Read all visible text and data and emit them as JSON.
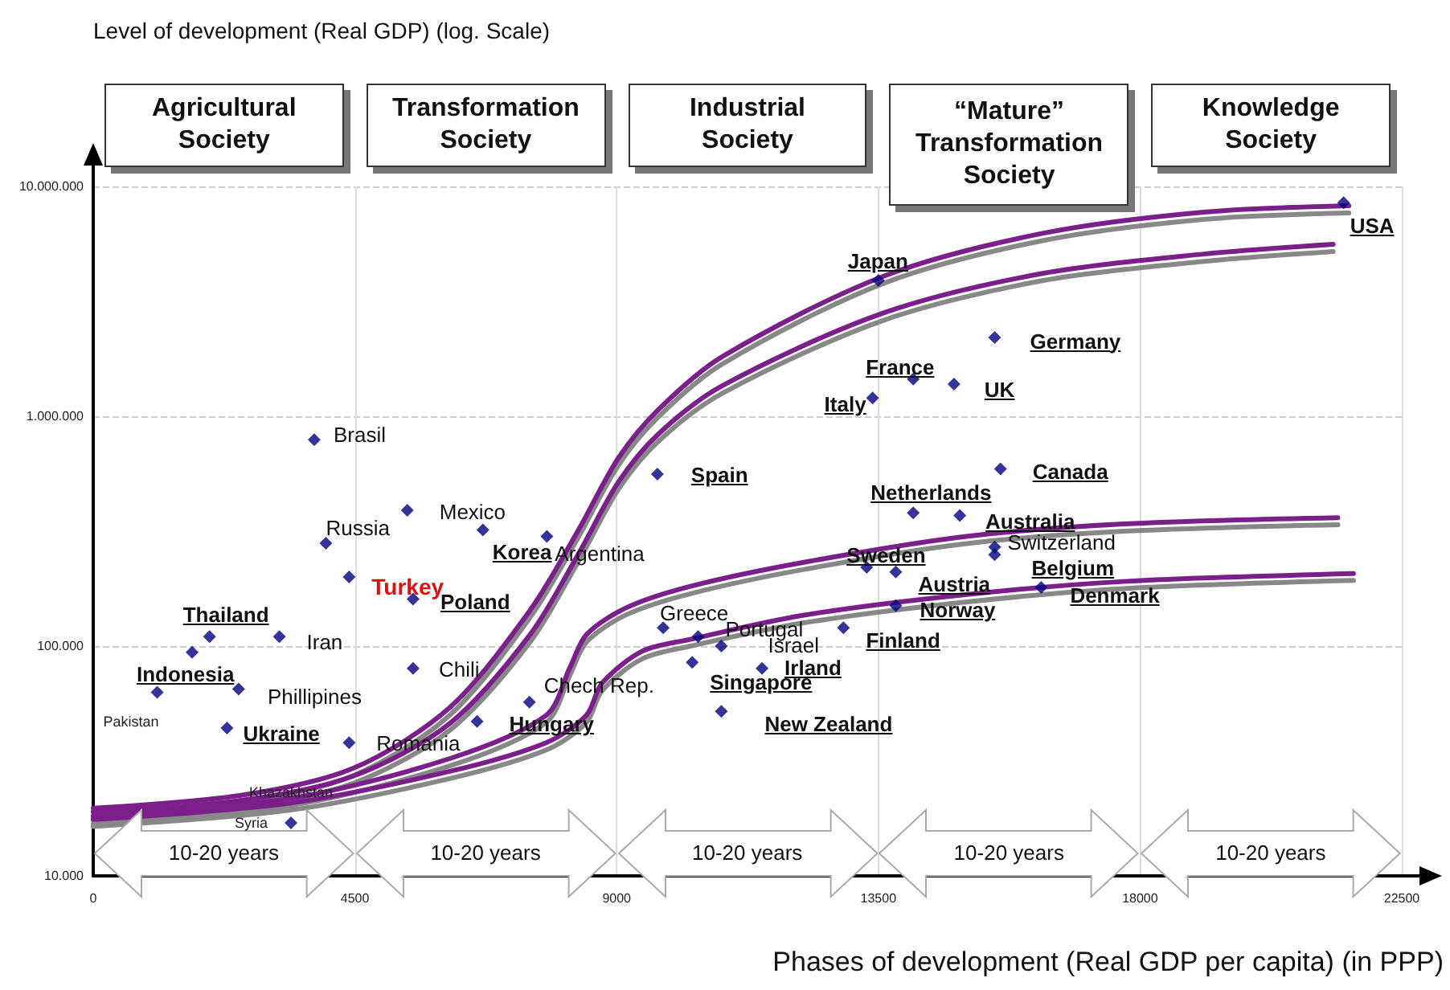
{
  "chart_data": {
    "type": "scatter",
    "title": "Level of development (Real GDP) (log. Scale)",
    "xlabel": "Phases of development (Real GDP per capita) (in PPP)",
    "xlim": [
      0,
      22500
    ],
    "xticks": [
      0,
      4500,
      9000,
      13500,
      18000,
      22500
    ],
    "ylim": [
      10000,
      10000000
    ],
    "yticks": [
      {
        "value": 10000,
        "label": "10.000"
      },
      {
        "value": 100000,
        "label": "100.000"
      },
      {
        "value": 1000000,
        "label": "1.000.000"
      },
      {
        "value": 10000000,
        "label": "10.000.000"
      }
    ],
    "log": "y",
    "grid": true,
    "series": [
      {
        "type": "line",
        "color": "#888888",
        "x": [
          0,
          2540,
          4470,
          6130,
          7510,
          8340,
          9030,
          9720,
          10820,
          13580,
          16340,
          19100,
          21590
        ],
        "values": [
          18300,
          20800,
          27300,
          50000,
          133000,
          297000,
          612000,
          995000,
          1690000,
          3780000,
          5820000,
          7190000,
          7660000
        ]
      },
      {
        "type": "line",
        "color": "#888888",
        "x": [
          0,
          2540,
          4470,
          6130,
          7510,
          8340,
          9030,
          9720,
          10820,
          13580,
          16340,
          19100,
          21320
        ],
        "values": [
          17700,
          19800,
          25300,
          43000,
          104000,
          233000,
          481000,
          779000,
          1260000,
          2610000,
          3900000,
          4720000,
          5210000
        ]
      },
      {
        "type": "line",
        "color": "#888888",
        "x": [
          0,
          3370,
          6130,
          7790,
          8200,
          8480,
          9170,
          10270,
          12200,
          14960,
          17720,
          21400
        ],
        "values": [
          16900,
          20200,
          30100,
          46500,
          75000,
          104000,
          137000,
          169000,
          215000,
          278000,
          316000,
          337000
        ]
      },
      {
        "type": "line",
        "color": "#888888",
        "x": [
          0,
          3370,
          6130,
          7790,
          8480,
          8750,
          9440,
          10270,
          12200,
          14960,
          17720,
          21670
        ],
        "values": [
          16400,
          19300,
          26500,
          35300,
          46500,
          64000,
          88000,
          100000,
          126000,
          155000,
          178000,
          193000
        ]
      },
      {
        "type": "line",
        "color": "#7b1f8a",
        "x": [
          0,
          2540,
          4470,
          6130,
          7510,
          8340,
          9030,
          9720,
          10820,
          13580,
          16340,
          19100,
          21590
        ],
        "values": [
          19700,
          22400,
          29400,
          54000,
          143000,
          319000,
          658000,
          1070000,
          1820000,
          4060000,
          6260000,
          7730000,
          8240000
        ]
      },
      {
        "type": "line",
        "color": "#7b1f8a",
        "x": [
          0,
          2540,
          4470,
          6130,
          7510,
          8340,
          9030,
          9720,
          10820,
          13580,
          16340,
          19100,
          21320
        ],
        "values": [
          19000,
          21300,
          27200,
          46000,
          112000,
          251000,
          517000,
          838000,
          1360000,
          2810000,
          4190000,
          5080000,
          5600000
        ]
      },
      {
        "type": "line",
        "color": "#7b1f8a",
        "x": [
          0,
          3370,
          6130,
          7790,
          8200,
          8480,
          9170,
          10270,
          12200,
          14960,
          17720,
          21400
        ],
        "values": [
          18200,
          21700,
          32400,
          50000,
          81000,
          112000,
          147000,
          182000,
          231000,
          299000,
          340000,
          362000
        ]
      },
      {
        "type": "line",
        "color": "#7b1f8a",
        "x": [
          0,
          3370,
          6130,
          7790,
          8480,
          8750,
          9440,
          10270,
          12200,
          14960,
          17720,
          21670
        ],
        "values": [
          17600,
          20700,
          28500,
          38000,
          50000,
          69000,
          95000,
          107000,
          136000,
          167000,
          191000,
          207000
        ]
      },
      {
        "marker": "diamond",
        "color": "#000080",
        "x": [
          21500,
          13500,
          15500,
          14100,
          14800,
          13400,
          15600,
          14100,
          14900,
          15500,
          15500,
          16300,
          13300,
          13800,
          13800,
          12900,
          9700,
          9800,
          10400,
          10800,
          11500,
          10300,
          10800,
          3800,
          5400,
          6700,
          7800,
          4000,
          4400,
          5500,
          2000,
          1700,
          1100,
          2500,
          3200,
          2300,
          4400,
          5500,
          6600,
          7500,
          3400
        ],
        "values": [
          8500000,
          3900000,
          2200000,
          1450000,
          1380000,
          1200000,
          590000,
          380000,
          370000,
          270000,
          250000,
          180000,
          220000,
          210000,
          150000,
          120000,
          560000,
          120000,
          110000,
          100000,
          80000,
          85000,
          52000,
          790000,
          390000,
          320000,
          300000,
          280000,
          200000,
          160000,
          110000,
          94000,
          63000,
          65000,
          110000,
          44000,
          38000,
          80000,
          47000,
          57000,
          17000
        ]
      }
    ],
    "annotations": [
      "Agricultural Society",
      "Transformation Society",
      "Industrial Society",
      "“Mature” Transformation Society",
      "Knowledge Society",
      "10-20 years",
      "10-20 years",
      "10-20 years",
      "10-20 years",
      "10-20 years",
      {
        "text": "USA",
        "x": 21500,
        "y": 8500000
      },
      {
        "text": "Japan",
        "x": 13500,
        "y": 3900000
      },
      {
        "text": "Germany",
        "x": 15500,
        "y": 2200000
      },
      {
        "text": "France",
        "x": 14100,
        "y": 1450000
      },
      {
        "text": "UK",
        "x": 14800,
        "y": 1380000
      },
      {
        "text": "Italy",
        "x": 13400,
        "y": 1200000
      },
      {
        "text": "Canada",
        "x": 15600,
        "y": 590000
      },
      {
        "text": "Netherlands",
        "x": 14100,
        "y": 380000
      },
      {
        "text": "Australia",
        "x": 14900,
        "y": 370000
      },
      {
        "text": "Switzerland",
        "x": 15500,
        "y": 270000
      },
      {
        "text": "Belgium",
        "x": 15500,
        "y": 250000
      },
      {
        "text": "Denmark",
        "x": 16300,
        "y": 180000
      },
      {
        "text": "Sweden",
        "x": 13300,
        "y": 220000
      },
      {
        "text": "Austria",
        "x": 13800,
        "y": 210000
      },
      {
        "text": "Norway",
        "x": 13800,
        "y": 150000
      },
      {
        "text": "Finland",
        "x": 12900,
        "y": 120000
      },
      {
        "text": "Spain",
        "x": 9700,
        "y": 560000
      },
      {
        "text": "Greece",
        "x": 9800,
        "y": 120000
      },
      {
        "text": "Portugal",
        "x": 10400,
        "y": 110000
      },
      {
        "text": "Israel",
        "x": 10800,
        "y": 100000
      },
      {
        "text": "Irland",
        "x": 11500,
        "y": 80000
      },
      {
        "text": "Singapore",
        "x": 10300,
        "y": 85000
      },
      {
        "text": "New Zealand",
        "x": 10800,
        "y": 52000
      },
      {
        "text": "Brasil",
        "x": 3800,
        "y": 790000
      },
      {
        "text": "Mexico",
        "x": 5400,
        "y": 390000
      },
      {
        "text": "Korea",
        "x": 6700,
        "y": 320000
      },
      {
        "text": "Argentina",
        "x": 7800,
        "y": 300000
      },
      {
        "text": "Russia",
        "x": 4000,
        "y": 280000
      },
      {
        "text": "Turkey",
        "x": 4400,
        "y": 200000
      },
      {
        "text": "Poland",
        "x": 5500,
        "y": 160000
      },
      {
        "text": "Thailand",
        "x": 2000,
        "y": 110000
      },
      {
        "text": "Indonesia",
        "x": 1700,
        "y": 94000
      },
      {
        "text": "Pakistan",
        "x": 1100,
        "y": 63000
      },
      {
        "text": "Phillipines",
        "x": 2500,
        "y": 65000
      },
      {
        "text": "Iran",
        "x": 3200,
        "y": 110000
      },
      {
        "text": "Ukraine",
        "x": 2300,
        "y": 44000
      },
      {
        "text": "Romania",
        "x": 4400,
        "y": 38000
      },
      {
        "text": "Chili",
        "x": 5500,
        "y": 80000
      },
      {
        "text": "Hungary",
        "x": 6600,
        "y": 47000
      },
      {
        "text": "Chech Rep.",
        "x": 7500,
        "y": 57000
      },
      {
        "text": "Syria",
        "x": 3400,
        "y": 17000
      },
      {
        "text": "Khazakhstan",
        "x": 3400,
        "y": 23000
      }
    ]
  }
}
